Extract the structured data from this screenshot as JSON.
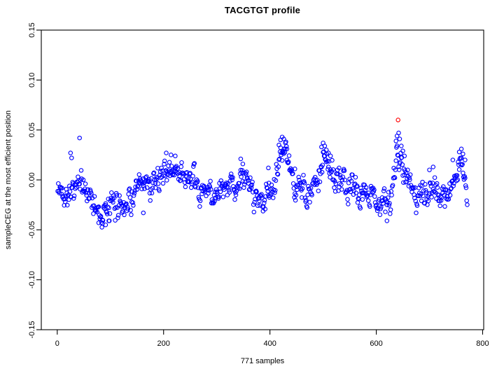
{
  "chart_data": {
    "type": "scatter",
    "title": "TACGTGT profile",
    "xlabel": "771 samples",
    "ylabel": "sampleCEG at the most efficient position",
    "axes": {
      "x_usr": [
        -30,
        802
      ],
      "y_usr": [
        -0.15,
        0.15
      ],
      "x_ticks": [
        {
          "value": 0,
          "label": "0"
        },
        {
          "value": 200,
          "label": "200"
        },
        {
          "value": 400,
          "label": "400"
        },
        {
          "value": 600,
          "label": "600"
        },
        {
          "value": 800,
          "label": "800"
        }
      ],
      "y_ticks": [
        {
          "value": 0.15,
          "label": "0.15"
        },
        {
          "value": 0.1,
          "label": "0.10"
        },
        {
          "value": 0.05,
          "label": "0.05"
        },
        {
          "value": 0.0,
          "label": "0.00"
        },
        {
          "value": -0.05,
          "label": "-0.05"
        },
        {
          "value": -0.1,
          "label": "-0.10"
        },
        {
          "value": -0.15,
          "label": "-0.15"
        }
      ],
      "grid": false,
      "box": true
    },
    "colors": {
      "point": "#0000ff",
      "highlight": "#ff0000",
      "axis": "#000000",
      "text": "#000000",
      "background": "#ffffff"
    },
    "legend": null,
    "scatter": {
      "n": 771,
      "seed": 42,
      "rho": 0.55,
      "noise": 0.015,
      "clip": [
        -0.052,
        0.052
      ],
      "marker": "open-circle",
      "mean_profile": [
        [
          1,
          -0.012
        ],
        [
          20,
          -0.01
        ],
        [
          42,
          -0.006
        ],
        [
          60,
          -0.014
        ],
        [
          78,
          -0.03
        ],
        [
          95,
          -0.034
        ],
        [
          112,
          -0.024
        ],
        [
          135,
          -0.02
        ],
        [
          155,
          -0.012
        ],
        [
          175,
          -0.004
        ],
        [
          190,
          0.004
        ],
        [
          210,
          0.01
        ],
        [
          232,
          0.009
        ],
        [
          250,
          -0.002
        ],
        [
          268,
          -0.014
        ],
        [
          290,
          -0.012
        ],
        [
          308,
          -0.016
        ],
        [
          322,
          -0.008
        ],
        [
          338,
          -0.001
        ],
        [
          352,
          0.001
        ],
        [
          368,
          -0.012
        ],
        [
          382,
          -0.019
        ],
        [
          398,
          -0.016
        ],
        [
          410,
          -0.004
        ],
        [
          420,
          0.026
        ],
        [
          428,
          0.032
        ],
        [
          436,
          0.008
        ],
        [
          448,
          -0.004
        ],
        [
          462,
          -0.012
        ],
        [
          478,
          -0.016
        ],
        [
          490,
          -0.004
        ],
        [
          502,
          0.024
        ],
        [
          512,
          0.016
        ],
        [
          524,
          -0.004
        ],
        [
          538,
          -0.01
        ],
        [
          552,
          -0.007
        ],
        [
          566,
          -0.013
        ],
        [
          580,
          -0.009
        ],
        [
          595,
          -0.014
        ],
        [
          610,
          -0.024
        ],
        [
          625,
          -0.026
        ],
        [
          634,
          0.004
        ],
        [
          640,
          0.034
        ],
        [
          648,
          0.022
        ],
        [
          656,
          0.008
        ],
        [
          666,
          -0.008
        ],
        [
          676,
          -0.022
        ],
        [
          690,
          -0.014
        ],
        [
          705,
          -0.009
        ],
        [
          718,
          -0.011
        ],
        [
          732,
          -0.013
        ],
        [
          746,
          -0.004
        ],
        [
          756,
          0.014
        ],
        [
          764,
          0.002
        ],
        [
          771,
          -0.012
        ]
      ],
      "extra_points": [
        [
          25,
          0.027
        ],
        [
          27,
          0.022
        ],
        [
          42,
          0.042
        ],
        [
          78,
          -0.043
        ],
        [
          85,
          -0.04
        ],
        [
          91,
          -0.045
        ],
        [
          97,
          -0.041
        ],
        [
          162,
          -0.033
        ],
        [
          205,
          0.027
        ],
        [
          214,
          0.025
        ],
        [
          222,
          0.024
        ],
        [
          345,
          0.021
        ],
        [
          349,
          0.016
        ],
        [
          397,
          0.012
        ],
        [
          417,
          0.035
        ],
        [
          420,
          0.04
        ],
        [
          423,
          0.043
        ],
        [
          426,
          0.041
        ],
        [
          429,
          0.037
        ],
        [
          432,
          0.031
        ],
        [
          447,
          0.011
        ],
        [
          497,
          0.033
        ],
        [
          500,
          0.037
        ],
        [
          503,
          0.034
        ],
        [
          506,
          0.03
        ],
        [
          510,
          0.027
        ],
        [
          514,
          0.024
        ],
        [
          530,
          0.012
        ],
        [
          620,
          -0.041
        ],
        [
          637,
          0.039
        ],
        [
          639,
          0.044
        ],
        [
          642,
          0.047
        ],
        [
          644,
          0.041
        ],
        [
          647,
          0.034
        ],
        [
          650,
          0.029
        ],
        [
          653,
          0.024
        ],
        [
          700,
          0.01
        ],
        [
          707,
          0.013
        ],
        [
          744,
          0.02
        ],
        [
          756,
          0.028
        ],
        [
          760,
          0.031
        ],
        [
          763,
          0.026
        ],
        [
          767,
          0.02
        ]
      ],
      "highlight_point": [
        641,
        0.06
      ]
    }
  }
}
